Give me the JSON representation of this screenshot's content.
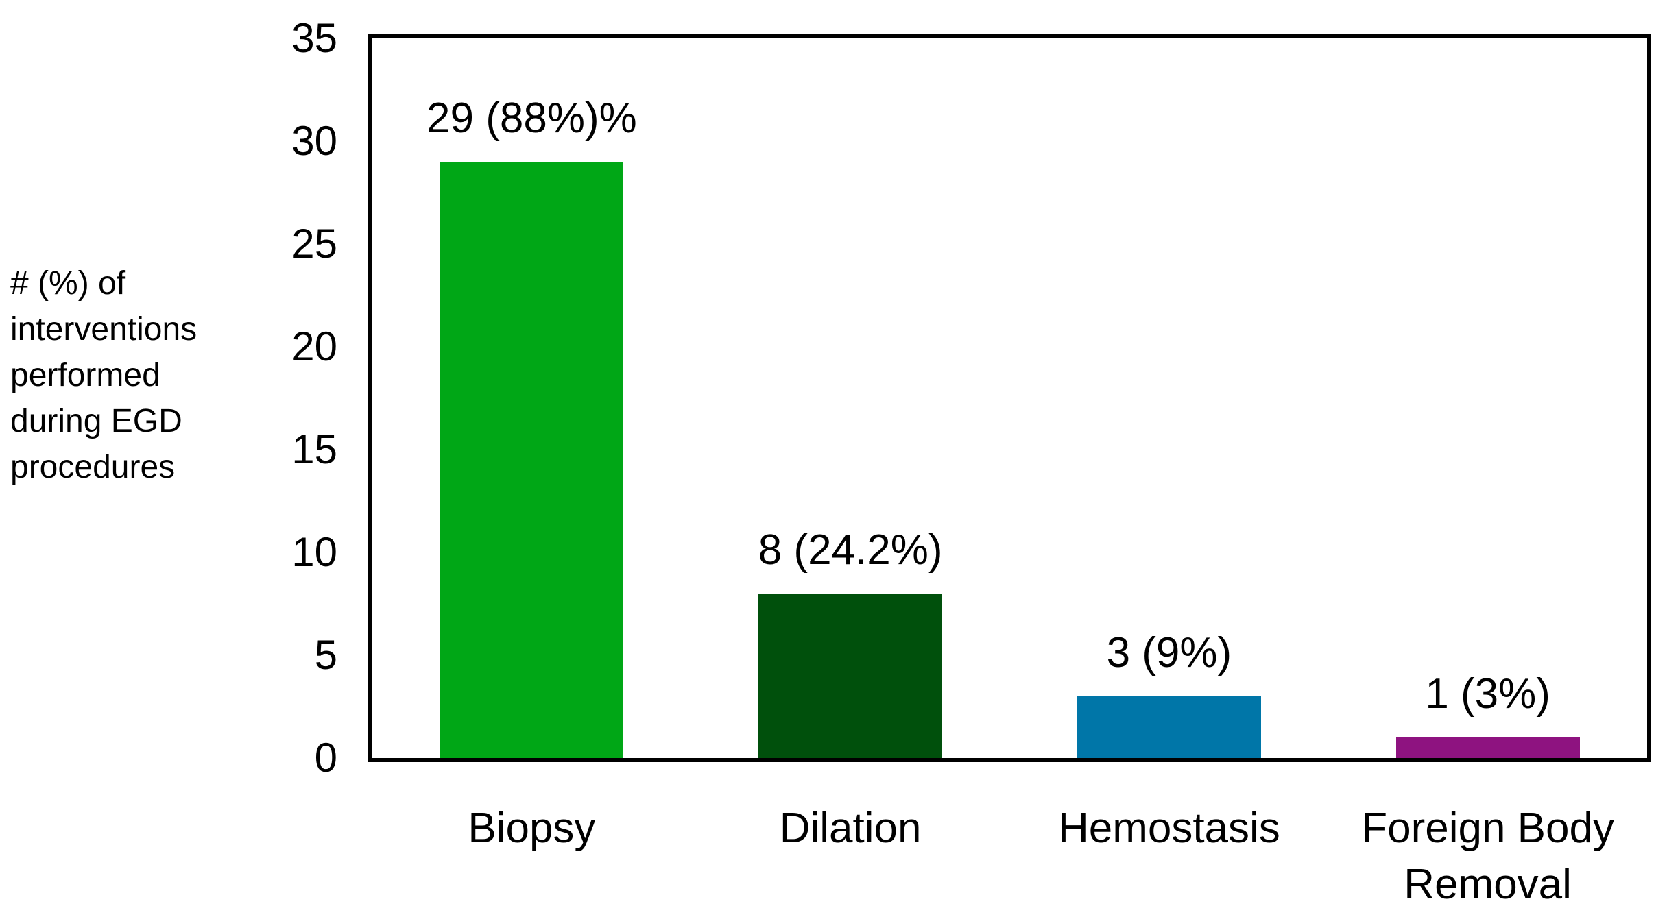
{
  "chart_data": {
    "type": "bar",
    "title": "",
    "xlabel": "",
    "ylabel": "# (%) of\ninterventions\nperformed\nduring EGD\nprocedures",
    "categories": [
      "Biopsy",
      "Dilation",
      "Hemostasis",
      "Foreign Body Removal"
    ],
    "values": [
      29,
      8,
      3,
      1
    ],
    "bar_labels": [
      "29 (88%)%",
      "8 (24.2%)",
      "3 (9%)",
      "1 (3%)"
    ],
    "bar_colors": [
      "#00A716",
      "#00500C",
      "#0076A8",
      "#8E1380"
    ],
    "category_slugs": [
      "biopsy",
      "dilation",
      "hemostasis",
      "foreign-body-removal"
    ],
    "ylim": [
      0,
      35
    ],
    "yticks": [
      0,
      5,
      10,
      15,
      20,
      25,
      30,
      35
    ],
    "grid": false,
    "legend_position": "none",
    "plot_border_color": "#000000",
    "background_color": "#FFFFFF",
    "text_color": "#000000"
  }
}
